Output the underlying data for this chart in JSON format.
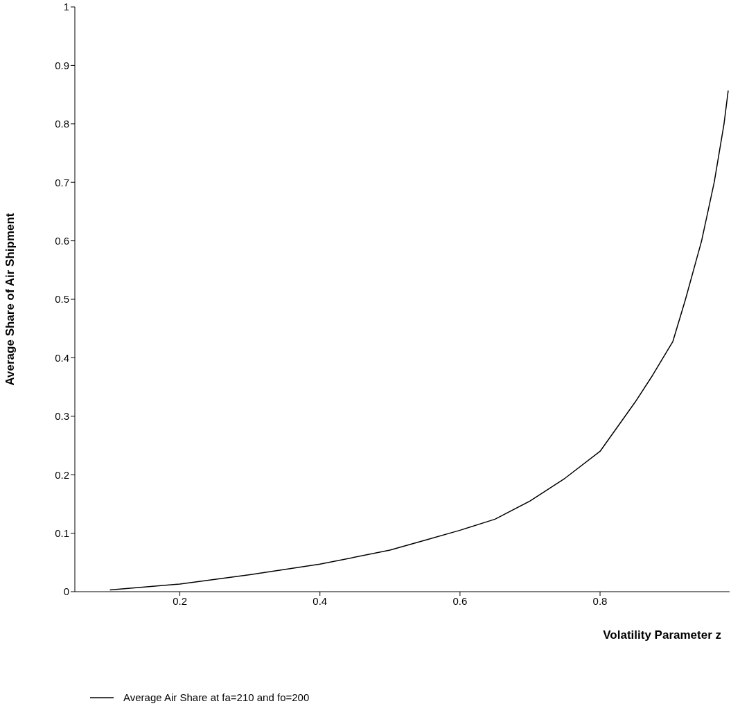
{
  "chart_data": {
    "type": "line",
    "xlabel": "Volatility Parameter z",
    "ylabel": "Average Share of Air Shipment",
    "x": [
      0.1,
      0.2,
      0.3,
      0.4,
      0.5,
      0.55,
      0.6,
      0.65,
      0.7,
      0.75,
      0.8,
      0.85,
      0.875,
      0.904,
      0.922,
      0.945,
      0.963,
      0.977,
      0.983
    ],
    "series": [
      {
        "name": "Average Air Share at fa=210 and fo=200",
        "color": "#000000",
        "values": [
          0.003,
          0.013,
          0.029,
          0.047,
          0.071,
          0.088,
          0.105,
          0.124,
          0.155,
          0.194,
          0.24,
          0.324,
          0.37,
          0.428,
          0.5,
          0.6,
          0.7,
          0.8,
          0.857
        ]
      }
    ],
    "xlim": [
      0.05,
      0.985
    ],
    "xticks": [
      0.2,
      0.4,
      0.6,
      0.8
    ],
    "ylim": [
      0,
      1
    ],
    "yticks": [
      0,
      0.1,
      0.2,
      0.3,
      0.4,
      0.5,
      0.6,
      0.7,
      0.8,
      0.9,
      1
    ],
    "grid": false,
    "legend": "bottom left",
    "marker": "none",
    "line_style": "solid"
  }
}
